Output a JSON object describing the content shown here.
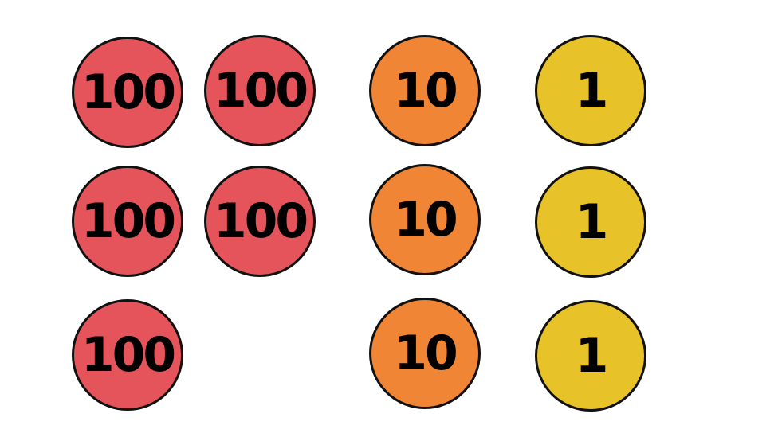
{
  "colors": {
    "hundreds": "#e5545a",
    "tens": "#ef8535",
    "ones": "#e8c229"
  },
  "counters": [
    {
      "label": "100",
      "group": "hundreds"
    },
    {
      "label": "100",
      "group": "hundreds"
    },
    {
      "label": "100",
      "group": "hundreds"
    },
    {
      "label": "100",
      "group": "hundreds"
    },
    {
      "label": "100",
      "group": "hundreds"
    },
    {
      "label": "10",
      "group": "tens"
    },
    {
      "label": "10",
      "group": "tens"
    },
    {
      "label": "10",
      "group": "tens"
    },
    {
      "label": "1",
      "group": "ones"
    },
    {
      "label": "1",
      "group": "ones"
    },
    {
      "label": "1",
      "group": "ones"
    }
  ]
}
